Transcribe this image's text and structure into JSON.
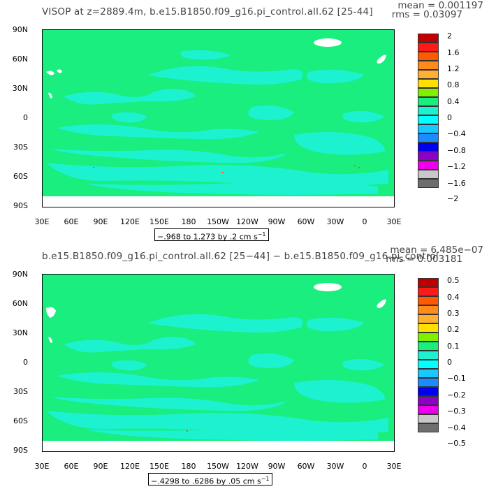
{
  "panels": [
    {
      "title": "VISOP at z=2889.4m, b.e15.B1850.f09_g16.pi_control.all.62 [25-44]",
      "mean": "mean = 0.001197",
      "rms": "rms = 0.03097",
      "range_text": "−.968 to 1.273 by .2 cm s",
      "range_exp": "−1",
      "colorbar_labels": [
        "2",
        "1.6",
        "1.2",
        "0.8",
        "0.4",
        "0",
        "−0.4",
        "−0.8",
        "−1.2",
        "−1.6",
        "−2"
      ]
    },
    {
      "title": "b.e15.B1850.f09_g16.pi_control.all.62 [25−44] − b.e15.B1850.f09_g16.pi_control",
      "mean": "mean = 6.485e−07",
      "rms": "rms = 0.003181",
      "range_text": "−.4298 to .6286 by .05 cm s",
      "range_exp": "−1",
      "colorbar_labels": [
        "0.5",
        "0.4",
        "0.3",
        "0.2",
        "0.1",
        "0",
        "−0.1",
        "−0.2",
        "−0.3",
        "−0.4",
        "−0.5"
      ]
    }
  ],
  "lat_labels": [
    "90N",
    "60N",
    "30N",
    "0",
    "30S",
    "60S",
    "90S"
  ],
  "lon_labels": [
    "30E",
    "60E",
    "90E",
    "120E",
    "150E",
    "180",
    "150W",
    "120W",
    "90W",
    "60W",
    "30W",
    "0",
    "30E"
  ],
  "colors": {
    "background_field": "#19ee7e",
    "negative_patches": "#1cf2d0",
    "land": "#ffffff"
  },
  "colorbar_colors": [
    "#c00000",
    "#ff1a1a",
    "#ff5a00",
    "#ff8c1a",
    "#ffb030",
    "#ffe000",
    "#7ff000",
    "#19ee7e",
    "#1cf2d0",
    "#00ffff",
    "#19c8ff",
    "#1a8cff",
    "#0000ee",
    "#8c00c8",
    "#ee00ee",
    "#c8c8c8",
    "#6e6e6e"
  ]
}
